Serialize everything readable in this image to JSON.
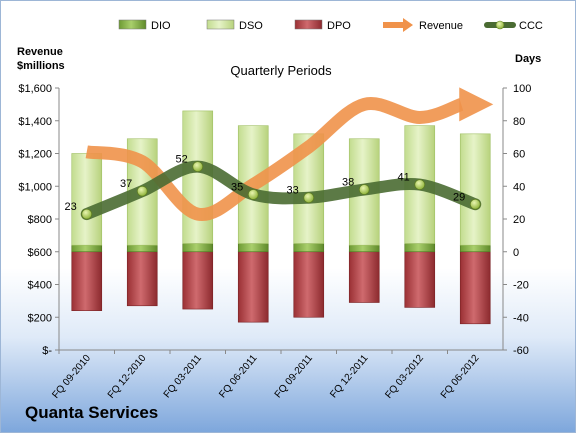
{
  "company": "Quanta Services",
  "chart_data": {
    "type": "bar",
    "title": "Quarterly Periods",
    "ylabel_left": "Revenue\n$millions",
    "ylabel_right": "Days",
    "categories": [
      "FQ 09-2010",
      "FQ 12-2010",
      "FQ 03-2011",
      "FQ 06-2011",
      "FQ 09-2011",
      "FQ 12-2011",
      "FQ 03-2012",
      "FQ 06-2012"
    ],
    "left_axis": {
      "range": [
        0,
        1600
      ],
      "ticks": [
        "$-",
        "$200",
        "$400",
        "$600",
        "$800",
        "$1,000",
        "$1,200",
        "$1,400",
        "$1,600"
      ]
    },
    "right_axis": {
      "range": [
        -60,
        100
      ],
      "ticks": [
        "-60",
        "-40",
        "-20",
        "0",
        "20",
        "40",
        "60",
        "80",
        "100"
      ]
    },
    "series": [
      {
        "name": "DIO",
        "type": "bar",
        "axis": "right",
        "values": [
          4,
          4,
          5,
          5,
          5,
          4,
          5,
          4
        ],
        "color": "#7fae3f"
      },
      {
        "name": "DSO",
        "type": "bar",
        "axis": "right",
        "values": [
          56,
          65,
          81,
          72,
          67,
          65,
          72,
          68
        ],
        "color": "#d3e8a8"
      },
      {
        "name": "DPO",
        "type": "bar",
        "axis": "right",
        "values": [
          -36,
          -33,
          -35,
          -43,
          -40,
          -31,
          -34,
          -44
        ],
        "color": "#b9464b"
      },
      {
        "name": "Revenue",
        "type": "line",
        "axis": "left",
        "values": [
          1210,
          1150,
          830,
          1010,
          1240,
          1500,
          1420,
          1500
        ],
        "color": "#f0924a"
      },
      {
        "name": "CCC",
        "type": "line",
        "axis": "right",
        "values": [
          23,
          37,
          52,
          35,
          33,
          38,
          41,
          29
        ],
        "color": "#4a6b32"
      }
    ],
    "legend": "top",
    "grid": false
  }
}
